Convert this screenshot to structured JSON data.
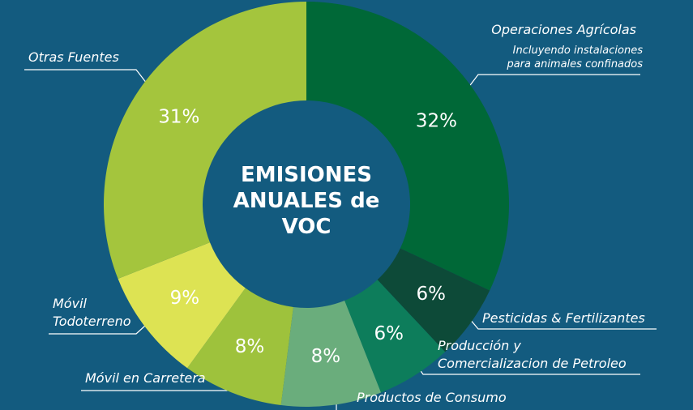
{
  "chart_data": {
    "type": "pie",
    "donut": true,
    "title": "EMISIONES ANUALES de VOC",
    "categories": [
      "Operaciones Agrícolas",
      "Pesticidas & Fertilizantes",
      "Producción y\nComercializacion de Petroleo",
      "Productos de Consumo",
      "Móvil en Carretera",
      "Móvil\nTodoterreno",
      "Otras Fuentes"
    ],
    "annotation": "Incluyendo instalaciones\npara animales confinados",
    "values": [
      32,
      6,
      6,
      8,
      8,
      9,
      31
    ],
    "value_labels": [
      "32%",
      "6%",
      "6%",
      "8%",
      "8%",
      "9%",
      "31%"
    ],
    "colors": [
      "#006837",
      "#0d4a38",
      "#0d7d5b",
      "#6aad7c",
      "#9ec23c",
      "#dde353",
      "#a4c53d"
    ]
  }
}
